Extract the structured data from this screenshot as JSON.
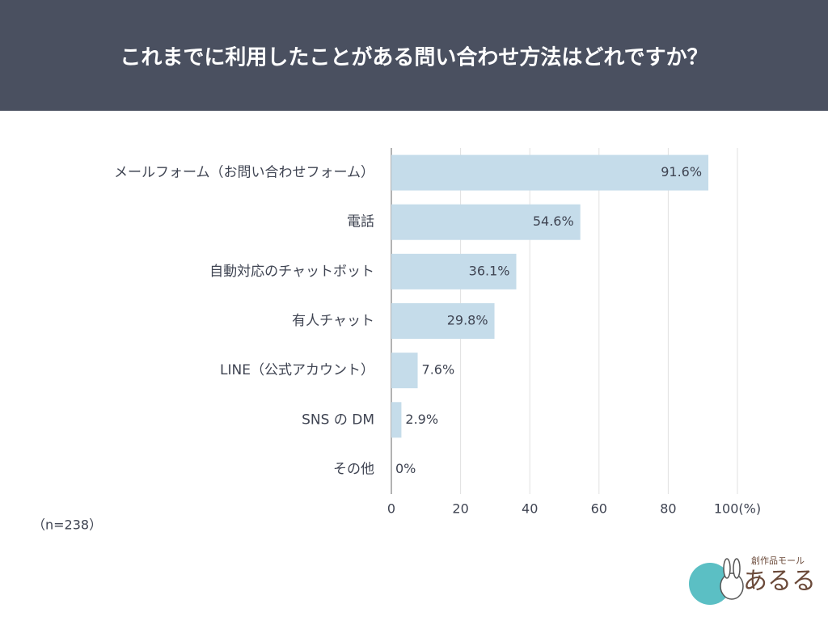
{
  "chart_data": {
    "type": "hbar",
    "title": "これまでに利用したことがある問い合わせ方法はどれですか？",
    "categories": [
      "メールフォーム（お問い合わせフォーム）",
      "電話",
      "自動対応のチャットボット",
      "有人チャット",
      "LINE（公式アカウント）",
      "SNS の DM",
      "その他"
    ],
    "values": [
      91.6,
      54.6,
      36.1,
      29.8,
      7.6,
      2.9,
      0
    ],
    "value_labels": [
      "91.6%",
      "54.6%",
      "36.1%",
      "29.8%",
      "7.6%",
      "2.9%",
      "0%"
    ],
    "color": "#c5dcea",
    "xlim": [
      0,
      100
    ],
    "xticks": [
      0,
      20,
      40,
      60,
      80,
      {
        "value": 100,
        "label": "100(%)"
      }
    ],
    "grid": true,
    "annotation": "（n=238）"
  },
  "logo": {
    "tagline": "創作品モール",
    "name": "あるる"
  }
}
